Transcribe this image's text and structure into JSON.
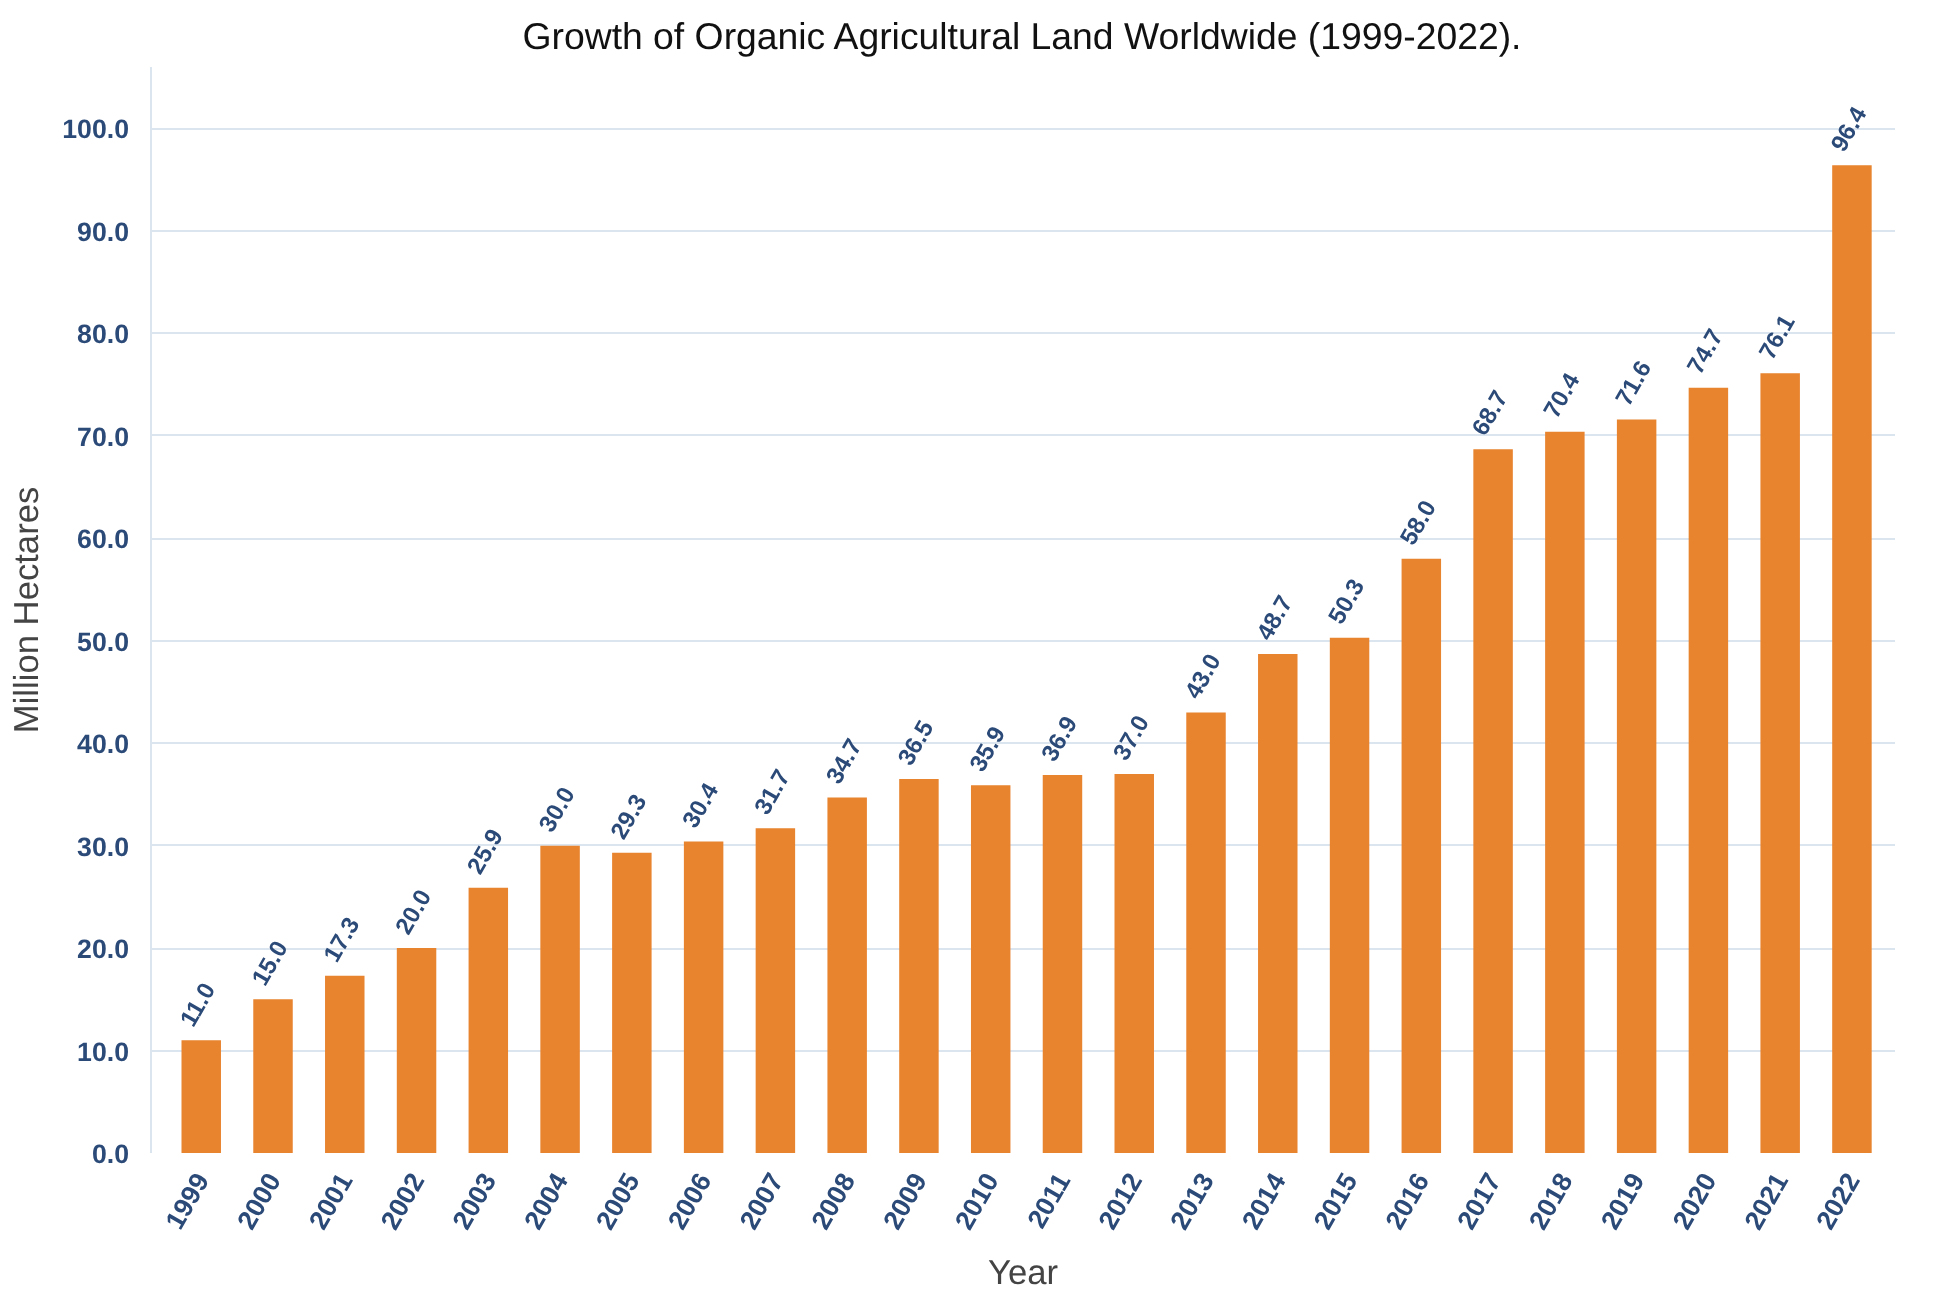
{
  "chart_data": {
    "type": "bar",
    "title": "Growth of Organic Agricultural Land Worldwide (1999-2022).",
    "xlabel": "Year",
    "ylabel": "Million Hectares",
    "categories": [
      "1999",
      "2000",
      "2001",
      "2002",
      "2003",
      "2004",
      "2005",
      "2006",
      "2007",
      "2008",
      "2009",
      "2010",
      "2011",
      "2012",
      "2013",
      "2014",
      "2015",
      "2016",
      "2017",
      "2018",
      "2019",
      "2020",
      "2021",
      "2022"
    ],
    "values": [
      11.0,
      15.0,
      17.3,
      20.0,
      25.9,
      30.0,
      29.3,
      30.4,
      31.7,
      34.7,
      36.5,
      35.9,
      36.9,
      37.0,
      43.0,
      48.7,
      50.3,
      58.0,
      68.7,
      70.4,
      71.6,
      74.7,
      76.1,
      96.4
    ],
    "color": "#e8832e",
    "value_labels": [
      "11.0",
      "15.0",
      "17.3",
      "20.0",
      "25.9",
      "30.0",
      "29.3",
      "30.4",
      "31.7",
      "34.7",
      "36.5",
      "35.9",
      "36.9",
      "37.0",
      "43.0",
      "48.7",
      "50.3",
      "58.0",
      "68.7",
      "70.4",
      "71.6",
      "74.7",
      "76.1",
      "96.4"
    ],
    "ylim": [
      0,
      106
    ],
    "yticks": [
      {
        "value": 0,
        "label": "0.0"
      },
      {
        "value": 10,
        "label": "10.0"
      },
      {
        "value": 20,
        "label": "20.0"
      },
      {
        "value": 30,
        "label": "30.0"
      },
      {
        "value": 40,
        "label": "40.0"
      },
      {
        "value": 50,
        "label": "50.0"
      },
      {
        "value": 60,
        "label": "60.0"
      },
      {
        "value": 70,
        "label": "70.0"
      },
      {
        "value": 80,
        "label": "80.0"
      },
      {
        "value": 90,
        "label": "90.0"
      },
      {
        "value": 100,
        "label": "100.0"
      }
    ],
    "grid": "y"
  }
}
